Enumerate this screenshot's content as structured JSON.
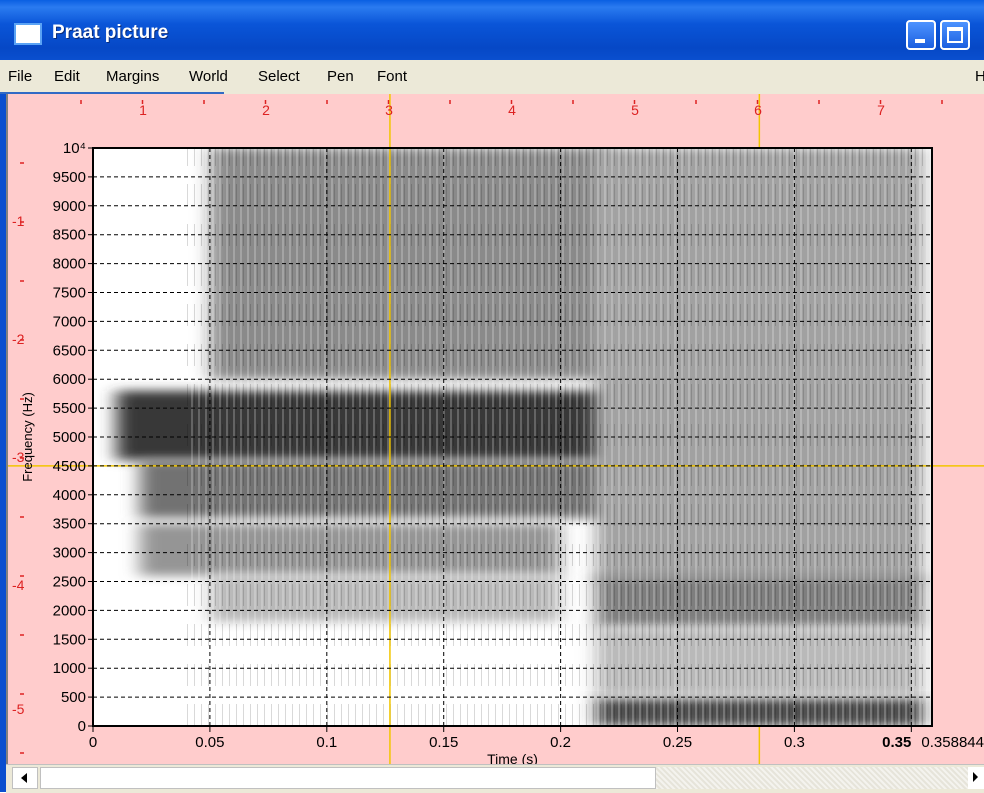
{
  "window": {
    "title": "Praat picture",
    "icon": "praat-picture-window-icon",
    "minimize_icon": "minimize-icon",
    "maximize_icon": "maximize-icon"
  },
  "menubar": {
    "items": [
      "File",
      "Edit",
      "Margins",
      "World",
      "Select",
      "Pen",
      "Font"
    ],
    "help_label": "H"
  },
  "ruler": {
    "top_labels": [
      "1",
      "2",
      "3",
      "4",
      "5",
      "6",
      "7"
    ],
    "left_labels": [
      "1",
      "2",
      "3",
      "4",
      "5"
    ]
  },
  "colors": {
    "canvas_background": "#ffcccc",
    "ruler_color": "#dd2222",
    "selection_color": "#f2c600",
    "grid_color": "#000000"
  },
  "chart_data": {
    "type": "heatmap",
    "title": "",
    "xlabel": "Time (s)",
    "ylabel": "Frequency (Hz)",
    "xlim": [
      0,
      0.358844
    ],
    "ylim": [
      0,
      10000
    ],
    "x_ticks": [
      "0",
      "0.05",
      "0.1",
      "0.15",
      "0.2",
      "0.25",
      "0.3",
      "0.35"
    ],
    "x_end_label": "0.358844",
    "y_ticks": [
      "0",
      "500",
      "1000",
      "1500",
      "2000",
      "2500",
      "3000",
      "3500",
      "4000",
      "4500",
      "5000",
      "5500",
      "6000",
      "6500",
      "7000",
      "7500",
      "8000",
      "8500",
      "9000",
      "9500",
      "10⁴"
    ],
    "grid": true,
    "grid_style": "dashed",
    "colormap": "grayscale (dark = high energy)",
    "energy_regions": [
      {
        "t": [
          0.01,
          0.22
        ],
        "f": [
          4600,
          5800
        ],
        "level": 0.85
      },
      {
        "t": [
          0.02,
          0.22
        ],
        "f": [
          3600,
          4600
        ],
        "level": 0.6
      },
      {
        "t": [
          0.05,
          0.22
        ],
        "f": [
          6000,
          10000
        ],
        "level": 0.5
      },
      {
        "t": [
          0.02,
          0.2
        ],
        "f": [
          2600,
          3500
        ],
        "level": 0.45
      },
      {
        "t": [
          0.05,
          0.2
        ],
        "f": [
          1800,
          2600
        ],
        "level": 0.3
      },
      {
        "t": [
          0.215,
          0.355
        ],
        "f": [
          2500,
          10000
        ],
        "level": 0.4
      },
      {
        "t": [
          0.215,
          0.355
        ],
        "f": [
          1700,
          2600
        ],
        "level": 0.55
      },
      {
        "t": [
          0.215,
          0.355
        ],
        "f": [
          0,
          500
        ],
        "level": 0.75
      },
      {
        "t": [
          0.215,
          0.355
        ],
        "f": [
          500,
          1700
        ],
        "level": 0.3
      }
    ],
    "selection_crosshair": {
      "t": 0.127,
      "f": 4500
    }
  }
}
